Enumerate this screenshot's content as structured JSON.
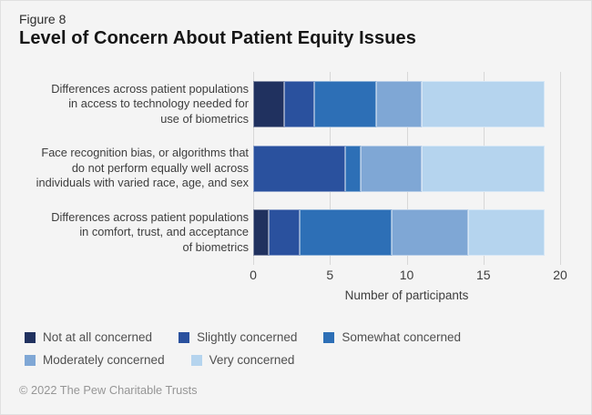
{
  "figure_label": "Figure 8",
  "title": "Level of Concern About Patient Equity Issues",
  "chart_data": {
    "type": "bar",
    "orientation": "horizontal",
    "stacked": true,
    "title": "Level of Concern About Patient Equity Issues",
    "categories": [
      "Differences across patient populations in access to technology needed for use of biometrics",
      "Face recognition bias, or algorithms that do not perform equally well across individuals with varied race, age, and sex",
      "Differences across patient populations in comfort, trust, and acceptance of biometrics"
    ],
    "category_label_lines": [
      [
        "Differences across patient populations",
        "in access to technology needed for",
        "use of biometrics"
      ],
      [
        "Face recognition bias, or algorithms that",
        "do not perform equally well across",
        "individuals with varied race, age, and sex"
      ],
      [
        "Differences across patient populations",
        "in comfort, trust, and acceptance",
        "of biometrics"
      ]
    ],
    "series": [
      {
        "name": "Not at all concerned",
        "color": "#20315f",
        "values": [
          2,
          0,
          1
        ]
      },
      {
        "name": "Slightly concerned",
        "color": "#2a519e",
        "values": [
          2,
          6,
          2
        ]
      },
      {
        "name": "Somewhat concerned",
        "color": "#2d6fb6",
        "values": [
          4,
          1,
          6
        ]
      },
      {
        "name": "Moderately concerned",
        "color": "#7fa7d5",
        "values": [
          3,
          4,
          5
        ]
      },
      {
        "name": "Very concerned",
        "color": "#b5d4ee",
        "values": [
          8,
          8,
          5
        ]
      }
    ],
    "totals": [
      19,
      19,
      19
    ],
    "xlabel": "Number of participants",
    "xlim": [
      0,
      20
    ],
    "xticks": [
      0,
      5,
      10,
      15,
      20
    ],
    "grid": true,
    "legend_position": "bottom",
    "legend_row_indices": [
      [
        0,
        1,
        2
      ],
      [
        3,
        4
      ]
    ]
  },
  "footer": "© 2022 The Pew Charitable Trusts",
  "colors": {
    "background": "#f4f4f4",
    "gridline": "#d7d7d7",
    "title_text": "#161616",
    "axis_text": "#3d3d3d",
    "legend_text": "#4f4f4f",
    "footer_text": "#969696"
  }
}
